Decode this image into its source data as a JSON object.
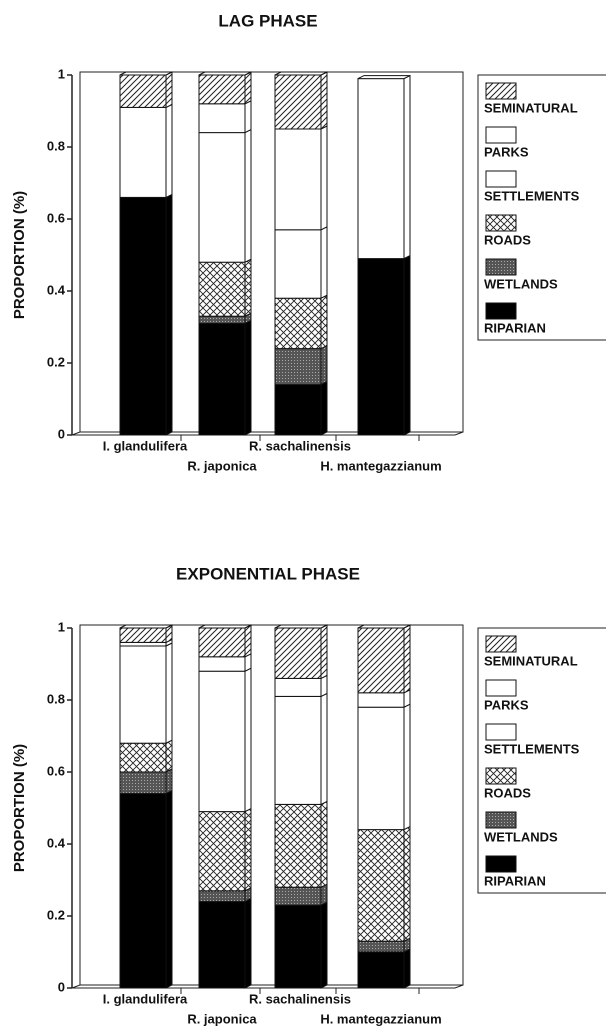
{
  "chart_data": [
    {
      "type": "stacked_bar",
      "title": "LAG PHASE",
      "ylabel": "PROPORTION (%)",
      "categories": [
        "I. glandulifera",
        "R. japonica",
        "R. sachalinensis",
        "H. mantegazzianum"
      ],
      "series": [
        {
          "name": "RIPARIAN",
          "color": "#000000",
          "pattern": "solid",
          "values": [
            0.66,
            0.31,
            0.14,
            0.49
          ]
        },
        {
          "name": "WETLANDS",
          "color": "#555555",
          "pattern": "dots",
          "values": [
            0,
            0.02,
            0.1,
            0
          ]
        },
        {
          "name": "ROADS",
          "color": "#ffffff",
          "pattern": "crosshatch",
          "values": [
            0,
            0.15,
            0.14,
            0
          ]
        },
        {
          "name": "SETTLEMENTS",
          "color": "#ffffff",
          "pattern": "solid",
          "values": [
            0.25,
            0.36,
            0.19,
            0.5
          ]
        },
        {
          "name": "PARKS",
          "color": "#ffffff",
          "pattern": "solid",
          "values": [
            0,
            0.08,
            0.28,
            0
          ]
        },
        {
          "name": "SEMINATURAL",
          "color": "#ffffff",
          "pattern": "hatch",
          "values": [
            0.09,
            0.08,
            0.15,
            0
          ]
        }
      ],
      "ylim": [
        0,
        1
      ],
      "yticks": [
        0,
        0.2,
        0.4,
        0.6,
        0.8,
        1
      ]
    },
    {
      "type": "stacked_bar",
      "title": "EXPONENTIAL  PHASE",
      "ylabel": "PROPORTION (%)",
      "categories": [
        "I. glandulifera",
        "R. japonica",
        "R. sachalinensis",
        "H. mantegazzianum"
      ],
      "series": [
        {
          "name": "RIPARIAN",
          "color": "#000000",
          "pattern": "solid",
          "values": [
            0.54,
            0.24,
            0.23,
            0.1
          ]
        },
        {
          "name": "WETLANDS",
          "color": "#555555",
          "pattern": "dots",
          "values": [
            0.06,
            0.03,
            0.05,
            0.03
          ]
        },
        {
          "name": "ROADS",
          "color": "#ffffff",
          "pattern": "crosshatch",
          "values": [
            0.08,
            0.22,
            0.23,
            0.31
          ]
        },
        {
          "name": "SETTLEMENTS",
          "color": "#ffffff",
          "pattern": "solid",
          "values": [
            0.27,
            0.39,
            0.3,
            0.34
          ]
        },
        {
          "name": "PARKS",
          "color": "#ffffff",
          "pattern": "solid",
          "values": [
            0.01,
            0.04,
            0.05,
            0.04
          ]
        },
        {
          "name": "SEMINATURAL",
          "color": "#ffffff",
          "pattern": "hatch",
          "values": [
            0.04,
            0.08,
            0.14,
            0.18
          ]
        }
      ],
      "ylim": [
        0,
        1
      ],
      "yticks": [
        0,
        0.2,
        0.4,
        0.6,
        0.8,
        1
      ]
    }
  ]
}
